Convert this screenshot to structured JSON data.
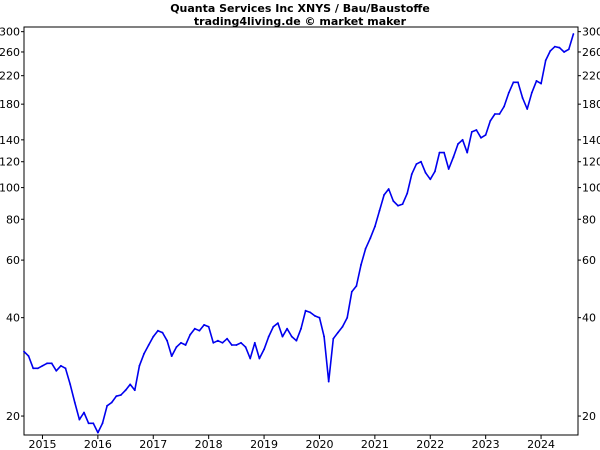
{
  "chart_data": {
    "type": "line",
    "title": "Quanta Services Inc XNYS / Bau/Baustoffe",
    "subtitle": "trading4living.de © market maker",
    "xlabel": "",
    "ylabel": "",
    "y_scale": "log",
    "ylim": [
      17.5,
      310
    ],
    "xlim": [
      "2014-09",
      "2024-09"
    ],
    "grid": false,
    "legend": "none",
    "colors": {
      "line": "#0000ee",
      "axis": "#000000",
      "background": "#ffffff"
    },
    "y_ticks": [
      20,
      40,
      60,
      80,
      100,
      120,
      140,
      180,
      220,
      260,
      300
    ],
    "y_tick_labels": [
      "20",
      "40",
      "60",
      "80",
      "100",
      "120",
      "140",
      "180",
      "220",
      "260",
      "300"
    ],
    "x_ticks": [
      "2015-01",
      "2016-01",
      "2017-01",
      "2018-01",
      "2019-01",
      "2020-01",
      "2021-01",
      "2022-01",
      "2023-01",
      "2024-01"
    ],
    "x_tick_labels": [
      "2015",
      "2016",
      "2017",
      "2018",
      "2019",
      "2020",
      "2021",
      "2022",
      "2023",
      "2024"
    ],
    "series": [
      {
        "x": [
          "2014-09",
          "2014-10",
          "2014-11",
          "2014-12",
          "2015-01",
          "2015-02",
          "2015-03",
          "2015-04",
          "2015-05",
          "2015-06",
          "2015-07",
          "2015-08",
          "2015-09",
          "2015-10",
          "2015-11",
          "2015-12",
          "2016-01",
          "2016-02",
          "2016-03",
          "2016-04",
          "2016-05",
          "2016-06",
          "2016-07",
          "2016-08",
          "2016-09",
          "2016-10",
          "2016-11",
          "2016-12",
          "2017-01",
          "2017-02",
          "2017-03",
          "2017-04",
          "2017-05",
          "2017-06",
          "2017-07",
          "2017-08",
          "2017-09",
          "2017-10",
          "2017-11",
          "2017-12",
          "2018-01",
          "2018-02",
          "2018-03",
          "2018-04",
          "2018-05",
          "2018-06",
          "2018-07",
          "2018-08",
          "2018-09",
          "2018-10",
          "2018-11",
          "2018-12",
          "2019-01",
          "2019-02",
          "2019-03",
          "2019-04",
          "2019-05",
          "2019-06",
          "2019-07",
          "2019-08",
          "2019-09",
          "2019-10",
          "2019-11",
          "2019-12",
          "2020-01",
          "2020-02",
          "2020-03",
          "2020-04",
          "2020-05",
          "2020-06",
          "2020-07",
          "2020-08",
          "2020-09",
          "2020-10",
          "2020-11",
          "2020-12",
          "2021-01",
          "2021-02",
          "2021-03",
          "2021-04",
          "2021-05",
          "2021-06",
          "2021-07",
          "2021-08",
          "2021-09",
          "2021-10",
          "2021-11",
          "2021-12",
          "2022-01",
          "2022-02",
          "2022-03",
          "2022-04",
          "2022-05",
          "2022-06",
          "2022-07",
          "2022-08",
          "2022-09",
          "2022-10",
          "2022-11",
          "2022-12",
          "2023-01",
          "2023-02",
          "2023-03",
          "2023-04",
          "2023-05",
          "2023-06",
          "2023-07",
          "2023-08",
          "2023-09",
          "2023-10",
          "2023-11",
          "2023-12",
          "2024-01",
          "2024-02",
          "2024-03",
          "2024-04",
          "2024-05",
          "2024-06",
          "2024-07",
          "2024-08"
        ],
        "y": [
          31.5,
          30.5,
          28.0,
          28.0,
          28.5,
          29.0,
          29.0,
          27.5,
          28.5,
          28.0,
          25.0,
          22.0,
          19.5,
          20.5,
          19.0,
          19.0,
          17.8,
          19.0,
          21.5,
          22.0,
          23.0,
          23.2,
          24.0,
          25.0,
          24.0,
          28.5,
          31.0,
          33.0,
          35.0,
          36.5,
          36.0,
          34.0,
          30.5,
          32.5,
          33.5,
          33.0,
          35.5,
          37.0,
          36.5,
          38.0,
          37.5,
          33.5,
          34.0,
          33.5,
          34.5,
          33.0,
          33.0,
          33.5,
          32.5,
          30.0,
          33.5,
          30.0,
          32.0,
          35.0,
          37.5,
          38.5,
          35.0,
          37.0,
          35.0,
          34.0,
          37.0,
          42.0,
          41.5,
          40.5,
          40.0,
          35.0,
          25.5,
          34.5,
          36.0,
          37.5,
          40.0,
          48.0,
          50.0,
          58.0,
          65.0,
          70.0,
          76.0,
          85.0,
          95.0,
          99.0,
          91.0,
          88.0,
          89.0,
          96.0,
          110.0,
          118.0,
          120.0,
          111.0,
          106.0,
          112.0,
          128.0,
          128.0,
          114.0,
          124.0,
          136.0,
          140.0,
          128.0,
          148.0,
          150.0,
          142.0,
          145.0,
          160.0,
          168.0,
          168.0,
          177.0,
          195.0,
          210.0,
          210.0,
          188.0,
          174.0,
          195.0,
          212.0,
          208.0,
          245.0,
          262.0,
          270.0,
          268.0,
          260.0,
          265.0,
          295.0
        ]
      }
    ]
  }
}
